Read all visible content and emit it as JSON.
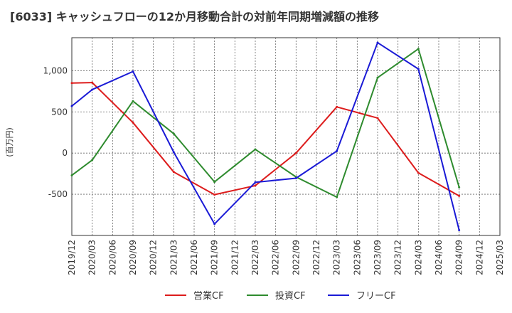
{
  "chart_data": {
    "type": "line",
    "title": "[6033]  キャッシュフローの12か月移動合計の対前年同期増減額の推移",
    "ylabel": "(百万円)",
    "xlabel": "",
    "ylim": [
      -1000,
      1400
    ],
    "yticks": [
      -500,
      0,
      500,
      1000
    ],
    "ytick_labels": [
      "-500",
      "0",
      "500",
      "1,000"
    ],
    "categories": [
      "2019/12",
      "2020/03",
      "2020/06",
      "2020/09",
      "2020/12",
      "2021/03",
      "2021/06",
      "2021/09",
      "2021/12",
      "2022/03",
      "2022/06",
      "2022/09",
      "2022/12",
      "2023/03",
      "2023/06",
      "2023/09",
      "2023/12",
      "2024/03",
      "2024/06",
      "2024/09",
      "2024/12",
      "2025/03"
    ],
    "series": [
      {
        "name": "営業CF",
        "color": "#dd1c1c",
        "values": [
          850,
          855,
          null,
          370,
          null,
          -230,
          null,
          -505,
          null,
          -395,
          null,
          0,
          null,
          560,
          null,
          425,
          null,
          -240,
          null,
          -520,
          null,
          null
        ]
      },
      {
        "name": "投資CF",
        "color": "#2e8b2e",
        "values": [
          -270,
          -85,
          null,
          630,
          null,
          235,
          null,
          -350,
          null,
          45,
          null,
          -290,
          null,
          -535,
          null,
          915,
          null,
          1265,
          null,
          -415,
          null,
          null
        ]
      },
      {
        "name": "フリーCF",
        "color": "#1a1ad6",
        "values": [
          570,
          770,
          null,
          990,
          null,
          10,
          null,
          -860,
          null,
          -355,
          null,
          -305,
          null,
          25,
          null,
          1340,
          null,
          1020,
          null,
          -935,
          null,
          null
        ]
      }
    ],
    "legend_position": "bottom",
    "grid": true
  }
}
